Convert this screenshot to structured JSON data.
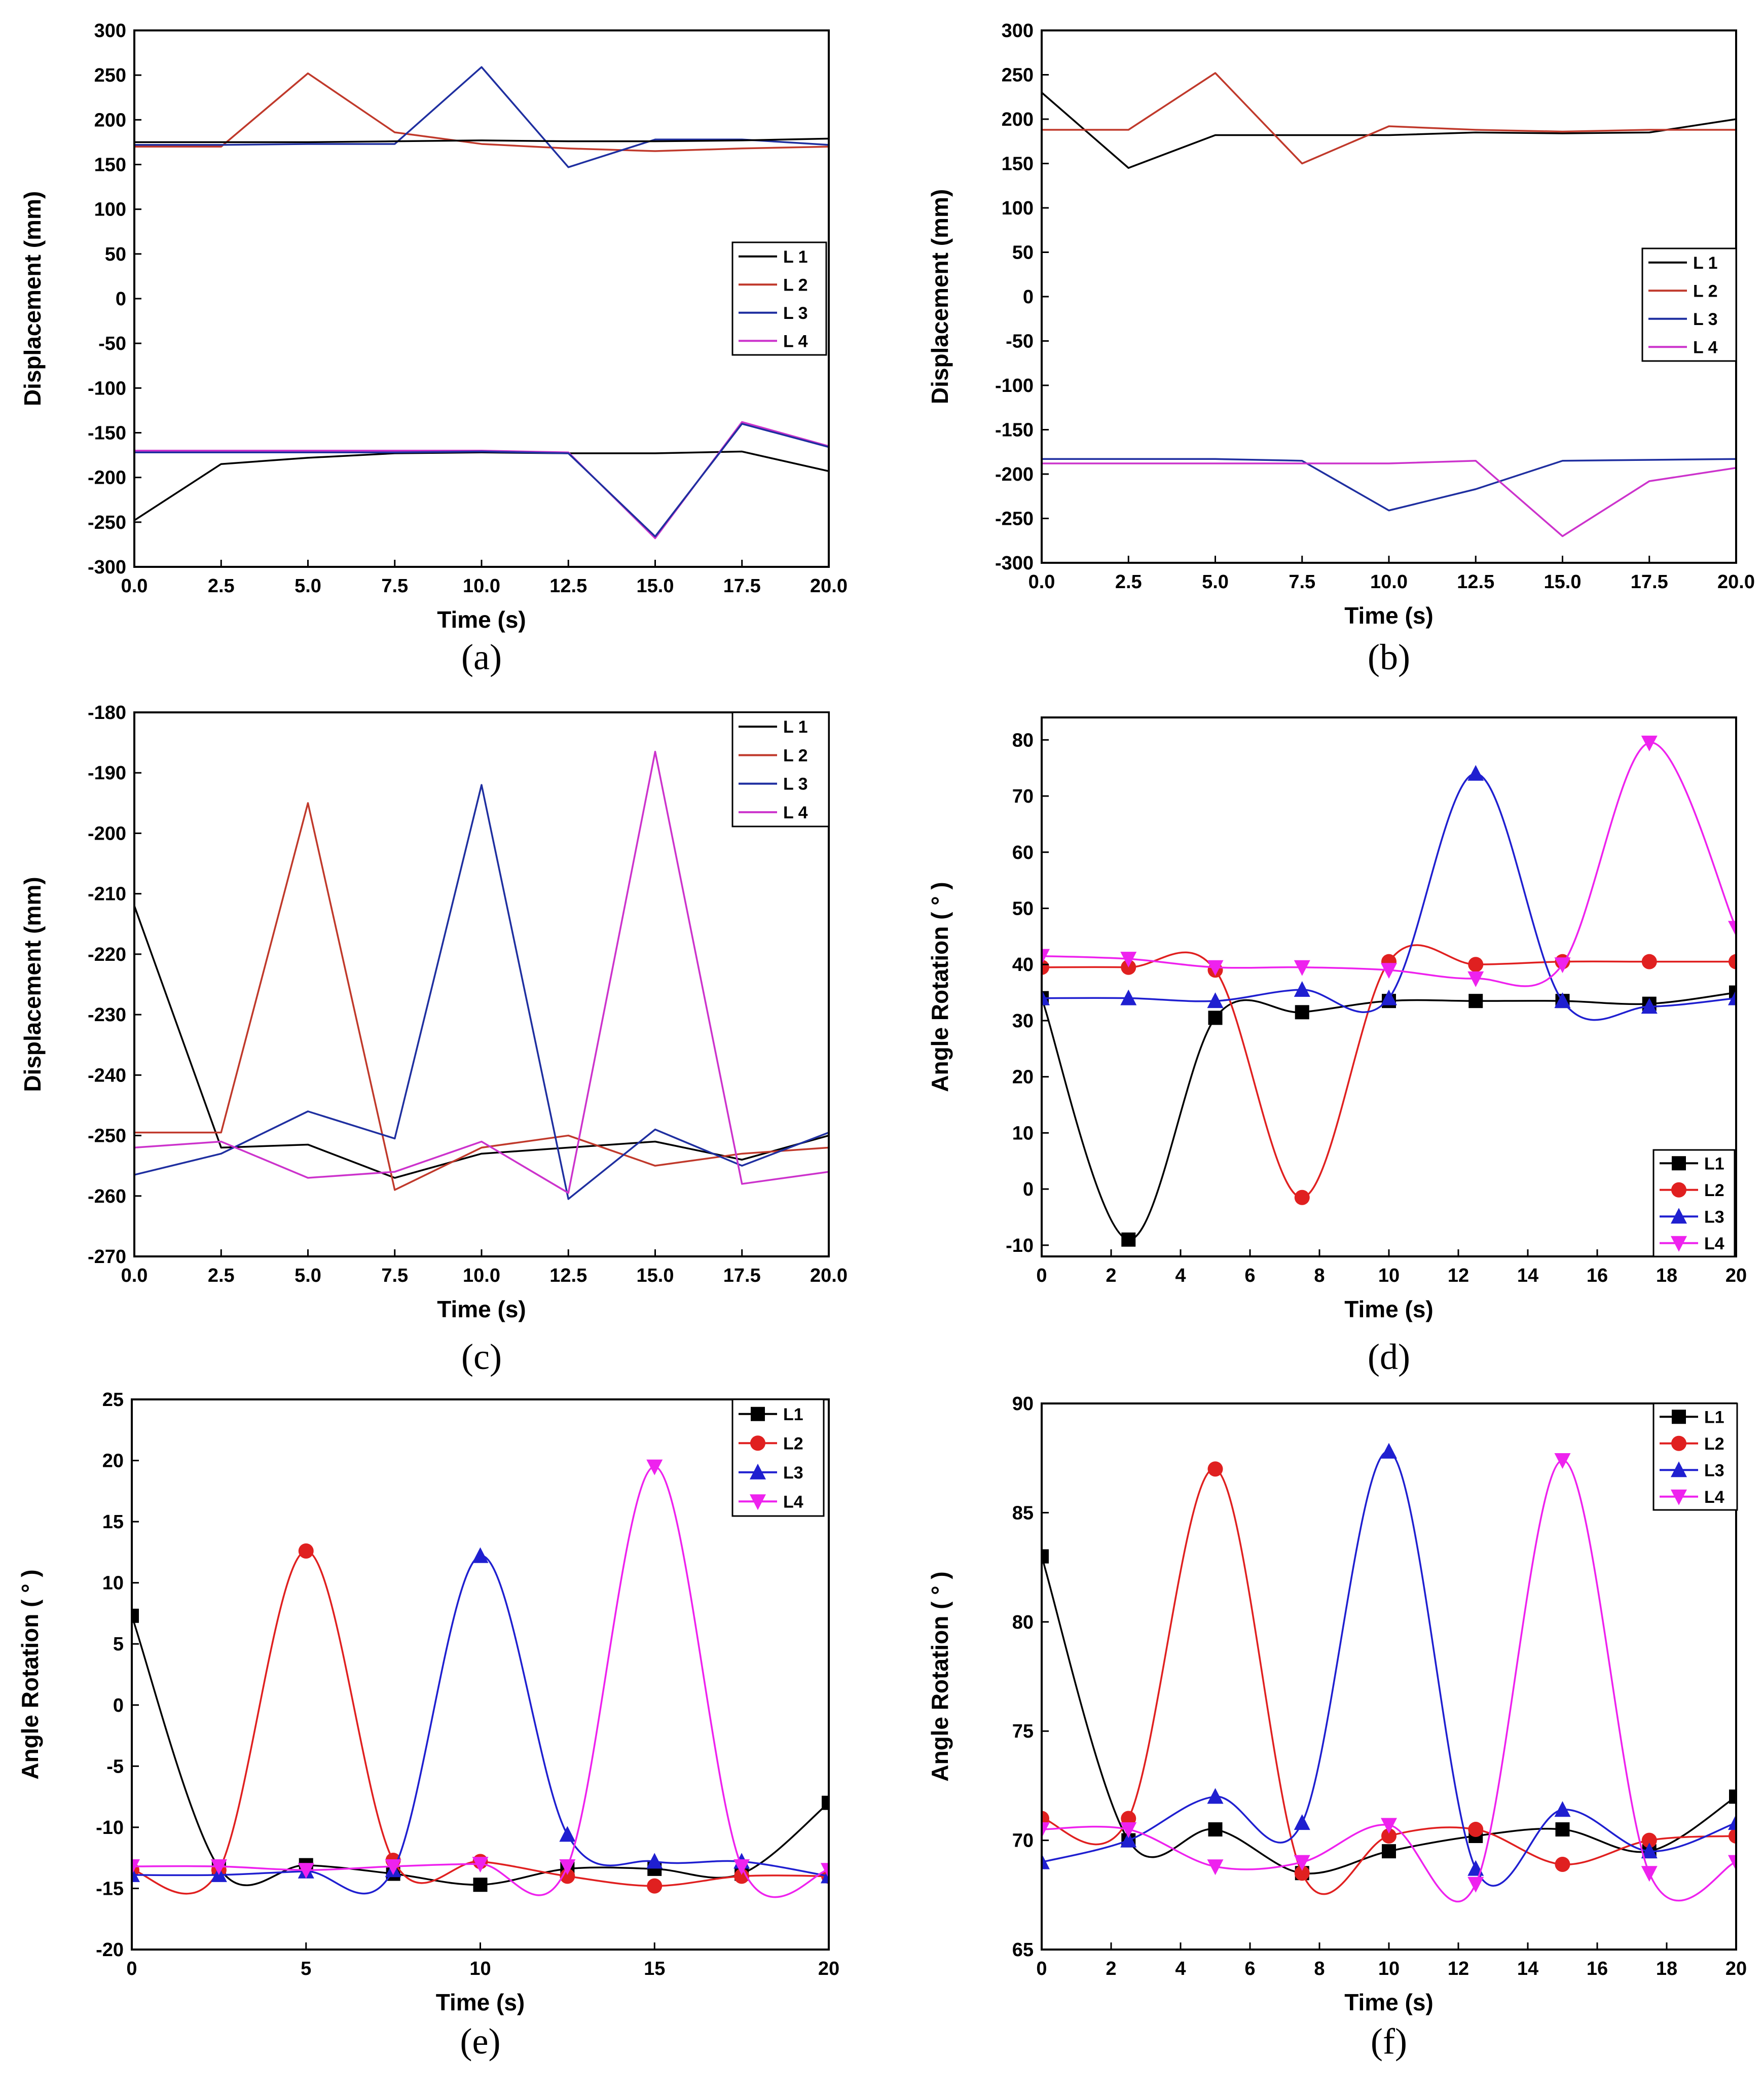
{
  "chart_data": [
    {
      "type": "line",
      "caption": "(a)",
      "title": "",
      "xlabel": "Time (s)",
      "ylabel": "Displacement (mm)",
      "xlim": [
        0,
        20
      ],
      "ylim": [
        -300,
        300
      ],
      "xticks": [
        0,
        2.5,
        5,
        7.5,
        10,
        12.5,
        15,
        17.5,
        20
      ],
      "xtick_labels": [
        "0.0",
        "2.5",
        "5.0",
        "7.5",
        "10.0",
        "12.5",
        "15.0",
        "17.5",
        "20.0"
      ],
      "yticks": [
        -300,
        -250,
        -200,
        -150,
        -100,
        -50,
        0,
        50,
        100,
        150,
        200,
        250,
        300
      ],
      "ytick_labels": [
        "-300",
        "-250",
        "-200",
        "-150",
        "-100",
        "-50",
        "0",
        "50",
        "100",
        "150",
        "200",
        "250",
        "300"
      ],
      "smooth": false,
      "markers": false,
      "legend_position": "middle-right",
      "x": [
        0,
        2.5,
        5,
        7.5,
        10,
        12.5,
        15,
        17.5,
        20
      ],
      "series": [
        {
          "name": "L 1",
          "color": "#000000",
          "values": [
            -248,
            -185,
            -178,
            -173,
            -172,
            -173,
            -173,
            -171,
            -193
          ]
        },
        {
          "name": "L 2",
          "color": "#c0392b",
          "values": [
            170,
            170,
            252,
            186,
            173,
            168,
            165,
            168,
            170
          ]
        },
        {
          "name": "L 3",
          "color": "#1f2fa0",
          "values": [
            172,
            172,
            173,
            173,
            259,
            147,
            178,
            178,
            172
          ]
        },
        {
          "name": "L 4",
          "color": "#cc33cc",
          "values": [
            -170,
            -170,
            -170,
            -170,
            -170,
            -172,
            -268,
            -138,
            -165
          ]
        },
        {
          "name": "",
          "color": "#000000",
          "values": [
            175,
            175,
            175,
            176,
            177,
            176,
            176,
            177,
            179
          ]
        },
        {
          "name": "",
          "color": "#1f2fa0",
          "values": [
            -172,
            -172,
            -172,
            -172,
            -171,
            -173,
            -266,
            -140,
            -166
          ]
        }
      ]
    },
    {
      "type": "line",
      "caption": "(b)",
      "title": "",
      "xlabel": "Time (s)",
      "ylabel": "Displacement (mm)",
      "xlim": [
        0,
        20
      ],
      "ylim": [
        -300,
        300
      ],
      "xticks": [
        0,
        2.5,
        5,
        7.5,
        10,
        12.5,
        15,
        17.5,
        20
      ],
      "xtick_labels": [
        "0.0",
        "2.5",
        "5.0",
        "7.5",
        "10.0",
        "12.5",
        "15.0",
        "17.5",
        "20.0"
      ],
      "yticks": [
        -300,
        -250,
        -200,
        -150,
        -100,
        -50,
        0,
        50,
        100,
        150,
        200,
        250,
        300
      ],
      "ytick_labels": [
        "-300",
        "-250",
        "-200",
        "-150",
        "-100",
        "-50",
        "0",
        "50",
        "100",
        "150",
        "200",
        "250",
        "300"
      ],
      "smooth": false,
      "markers": false,
      "legend_position": "middle-right",
      "x": [
        0,
        2.5,
        5,
        7.5,
        10,
        12.5,
        15,
        17.5,
        20
      ],
      "series": [
        {
          "name": "L 1",
          "color": "#000000",
          "values": [
            230,
            145,
            182,
            182,
            182,
            185,
            184,
            185,
            200
          ]
        },
        {
          "name": "L 2",
          "color": "#c0392b",
          "values": [
            188,
            188,
            252,
            150,
            192,
            188,
            186,
            188,
            188
          ]
        },
        {
          "name": "L 3",
          "color": "#1f2fa0",
          "values": [
            -183,
            -183,
            -183,
            -185,
            -241,
            -217,
            -185,
            -184,
            -183
          ]
        },
        {
          "name": "L 4",
          "color": "#cc33cc",
          "values": [
            -188,
            -188,
            -188,
            -188,
            -188,
            -185,
            -270,
            -208,
            -193
          ]
        }
      ]
    },
    {
      "type": "line",
      "caption": "(c)",
      "title": "",
      "xlabel": "Time (s)",
      "ylabel": "Displacement (mm)",
      "xlim": [
        0,
        20
      ],
      "ylim": [
        -270,
        -180
      ],
      "xticks": [
        0,
        2.5,
        5,
        7.5,
        10,
        12.5,
        15,
        17.5,
        20
      ],
      "xtick_labels": [
        "0.0",
        "2.5",
        "5.0",
        "7.5",
        "10.0",
        "12.5",
        "15.0",
        "17.5",
        "20.0"
      ],
      "yticks": [
        -270,
        -260,
        -250,
        -240,
        -230,
        -220,
        -210,
        -200,
        -190,
        -180
      ],
      "ytick_labels": [
        "-270",
        "-260",
        "-250",
        "-240",
        "-230",
        "-220",
        "-210",
        "-200",
        "-190",
        "-180"
      ],
      "smooth": false,
      "markers": false,
      "legend_position": "top-right",
      "x": [
        0,
        2.5,
        5,
        7.5,
        10,
        12.5,
        15,
        17.5,
        20
      ],
      "series": [
        {
          "name": "L 1",
          "color": "#000000",
          "values": [
            -212,
            -252,
            -251.5,
            -257,
            -253,
            -252,
            -251,
            -254,
            -250
          ]
        },
        {
          "name": "L 2",
          "color": "#c0392b",
          "values": [
            -249.5,
            -249.5,
            -195,
            -259,
            -252,
            -250,
            -255,
            -253,
            -252
          ]
        },
        {
          "name": "L 3",
          "color": "#1f2fa0",
          "values": [
            -256.5,
            -253,
            -246,
            -250.5,
            -192,
            -260.5,
            -249,
            -255,
            -249.5
          ]
        },
        {
          "name": "L 4",
          "color": "#cc33cc",
          "values": [
            -252,
            -251,
            -257,
            -256,
            -251,
            -259.5,
            -186.5,
            -258,
            -256
          ]
        }
      ]
    },
    {
      "type": "line",
      "caption": "(d)",
      "title": "",
      "xlabel": "Time (s)",
      "ylabel": "Angle Rotation ( ° )",
      "xlim": [
        0,
        20
      ],
      "ylim": [
        -12,
        84
      ],
      "xticks": [
        0,
        2,
        4,
        6,
        8,
        10,
        12,
        14,
        16,
        18,
        20
      ],
      "xtick_labels": [
        "0",
        "2",
        "4",
        "6",
        "8",
        "10",
        "12",
        "14",
        "16",
        "18",
        "20"
      ],
      "yticks": [
        -10,
        0,
        10,
        20,
        30,
        40,
        50,
        60,
        70,
        80
      ],
      "ytick_labels": [
        "-10",
        "0",
        "10",
        "20",
        "30",
        "40",
        "50",
        "60",
        "70",
        "80"
      ],
      "smooth": true,
      "markers": true,
      "legend_position": "bottom-right",
      "x": [
        0,
        2.5,
        5,
        7.5,
        10,
        12.5,
        15,
        17.5,
        20
      ],
      "series": [
        {
          "name": "L1",
          "color": "#000000",
          "marker": "square",
          "values": [
            34,
            -9,
            30.5,
            31.5,
            33.5,
            33.5,
            33.5,
            33,
            35
          ]
        },
        {
          "name": "L2",
          "color": "#e02020",
          "marker": "circle",
          "values": [
            39.5,
            39.5,
            39,
            -1.5,
            40.5,
            40,
            40.5,
            40.5,
            40.5
          ]
        },
        {
          "name": "L3",
          "color": "#1f1fd0",
          "marker": "triangle-up",
          "values": [
            34,
            34,
            33.5,
            35.5,
            34,
            74,
            33.5,
            32.5,
            34
          ]
        },
        {
          "name": "L4",
          "color": "#ee22ee",
          "marker": "triangle-down",
          "values": [
            41.5,
            41,
            39.5,
            39.5,
            39,
            37.5,
            40,
            79.5,
            46.5
          ]
        }
      ]
    },
    {
      "type": "line",
      "caption": "(e)",
      "title": "",
      "xlabel": "Time (s)",
      "ylabel": "Angle Rotation ( ° )",
      "xlim": [
        0,
        20
      ],
      "ylim": [
        -20,
        25
      ],
      "xticks": [
        0,
        5,
        10,
        15,
        20
      ],
      "xtick_labels": [
        "0",
        "5",
        "10",
        "15",
        "20"
      ],
      "yticks": [
        -20,
        -15,
        -10,
        -5,
        0,
        5,
        10,
        15,
        20,
        25
      ],
      "ytick_labels": [
        "-20",
        "-15",
        "-10",
        "-5",
        "0",
        "5",
        "10",
        "15",
        "20",
        "25"
      ],
      "smooth": true,
      "markers": true,
      "legend_position": "top-right",
      "x": [
        0,
        2.5,
        5,
        7.5,
        10,
        12.5,
        15,
        17.5,
        20
      ],
      "series": [
        {
          "name": "L1",
          "color": "#000000",
          "marker": "square",
          "values": [
            7.3,
            -13.3,
            -13.1,
            -13.8,
            -14.7,
            -13.4,
            -13.4,
            -13.8,
            -8
          ]
        },
        {
          "name": "L2",
          "color": "#e02020",
          "marker": "circle",
          "values": [
            -13.5,
            -13.5,
            12.6,
            -12.7,
            -12.8,
            -14,
            -14.8,
            -14,
            -14
          ]
        },
        {
          "name": "L3",
          "color": "#1f1fd0",
          "marker": "triangle-up",
          "values": [
            -13.9,
            -13.9,
            -13.6,
            -13.5,
            12.2,
            -10.6,
            -12.8,
            -12.8,
            -14
          ]
        },
        {
          "name": "L4",
          "color": "#ee22ee",
          "marker": "triangle-down",
          "values": [
            -13.2,
            -13.2,
            -13.5,
            -13.2,
            -13,
            -13.2,
            19.5,
            -13.2,
            -13.5
          ]
        }
      ]
    },
    {
      "type": "line",
      "caption": "(f)",
      "title": "",
      "xlabel": "Time (s)",
      "ylabel": "Angle Rotation ( ° )",
      "xlim": [
        0,
        20
      ],
      "ylim": [
        65,
        90
      ],
      "xticks": [
        0,
        2,
        4,
        6,
        8,
        10,
        12,
        14,
        16,
        18,
        20
      ],
      "xtick_labels": [
        "0",
        "2",
        "4",
        "6",
        "8",
        "10",
        "12",
        "14",
        "16",
        "18",
        "20"
      ],
      "yticks": [
        65,
        70,
        75,
        80,
        85,
        90
      ],
      "ytick_labels": [
        "65",
        "70",
        "75",
        "80",
        "85",
        "90"
      ],
      "smooth": true,
      "markers": true,
      "legend_position": "top-right",
      "x": [
        0,
        2.5,
        5,
        7.5,
        10,
        12.5,
        15,
        17.5,
        20
      ],
      "series": [
        {
          "name": "L1",
          "color": "#000000",
          "marker": "square",
          "values": [
            83,
            70,
            70.5,
            68.5,
            69.5,
            70.2,
            70.5,
            69.5,
            72
          ]
        },
        {
          "name": "L2",
          "color": "#e02020",
          "marker": "circle",
          "values": [
            71,
            71,
            87,
            68.5,
            70.2,
            70.5,
            68.9,
            70,
            70.2
          ]
        },
        {
          "name": "L3",
          "color": "#1f1fd0",
          "marker": "triangle-up",
          "values": [
            69,
            70,
            72,
            70.8,
            87.8,
            68.7,
            71.4,
            69.5,
            70.8
          ]
        },
        {
          "name": "L4",
          "color": "#ee22ee",
          "marker": "triangle-down",
          "values": [
            70.5,
            70.5,
            68.8,
            69,
            70.7,
            68,
            87.4,
            68.5,
            69
          ]
        }
      ]
    }
  ]
}
